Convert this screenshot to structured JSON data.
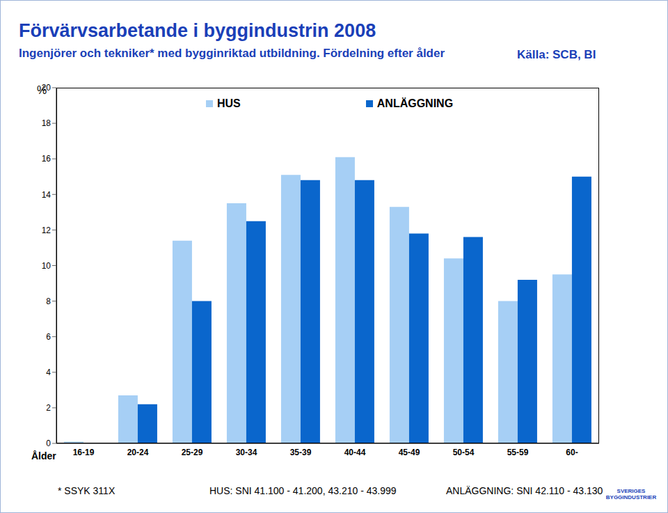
{
  "chart_data": {
    "type": "bar",
    "title": "Förvärvsarbetande i byggindustrin 2008",
    "subtitle": "Ingenjörer och tekniker* med bygginriktad utbildning. Fördelning efter ålder",
    "source": "Källa: SCB, BI",
    "y_label": "%",
    "x_label": "Ålder",
    "categories": [
      "16-19",
      "20-24",
      "25-29",
      "30-34",
      "35-39",
      "40-44",
      "45-49",
      "50-54",
      "55-59",
      "60-"
    ],
    "series": [
      {
        "name": "HUS",
        "color": "#a6cff5",
        "values": [
          0.1,
          2.7,
          11.4,
          13.5,
          15.1,
          16.1,
          13.3,
          10.4,
          8.0,
          9.5
        ]
      },
      {
        "name": "ANLÄGGNING",
        "color": "#0a66cc",
        "values": [
          0,
          2.2,
          8.0,
          12.5,
          14.8,
          14.8,
          11.8,
          11.6,
          9.2,
          15.0
        ]
      }
    ],
    "ylim": [
      0,
      20
    ],
    "yticks": [
      0,
      2,
      4,
      6,
      8,
      10,
      12,
      14,
      16,
      18,
      20
    ],
    "grid": false,
    "legend": "top",
    "notes": [
      "* SSYK 311X",
      "HUS: SNI 41.100 - 41.200, 43.210 - 43.999",
      "ANLÄGGNING: SNI 42.110 - 43.130"
    ],
    "logo_text": "SVERIGES BYGGINDUSTRIER"
  }
}
